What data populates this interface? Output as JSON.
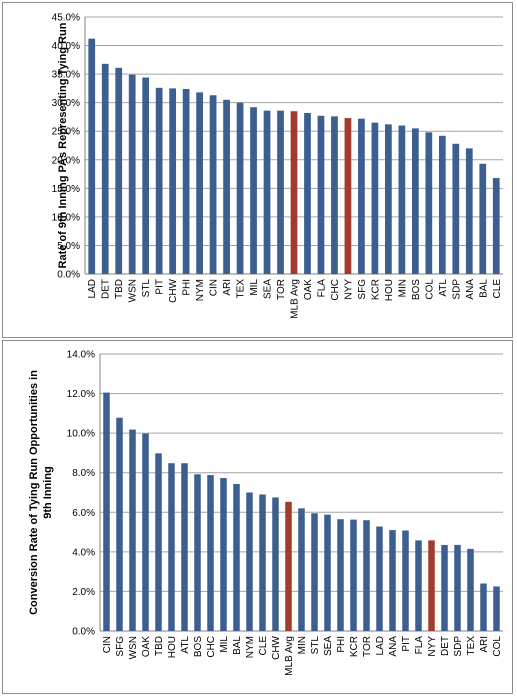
{
  "chart_data": [
    {
      "type": "bar",
      "title": "",
      "xlabel": "",
      "ylabel": "Rate of 9th Inning PAs Representing Tying Run",
      "ylim": [
        0,
        0.45
      ],
      "y_ticks": [
        "0.0%",
        "5.0%",
        "10.0%",
        "15.0%",
        "20.0%",
        "25.0%",
        "30.0%",
        "35.0%",
        "40.0%",
        "45.0%"
      ],
      "y_tick_values": [
        0,
        0.05,
        0.1,
        0.15,
        0.2,
        0.25,
        0.3,
        0.35,
        0.4,
        0.45
      ],
      "grid": "y-major",
      "bar_color": "#3c5f8f",
      "highlight_color": "#a13b2e",
      "highlight": [
        "MLB Avg",
        "NYY"
      ],
      "categories": [
        "LAD",
        "DET",
        "TBD",
        "WSN",
        "STL",
        "PIT",
        "CHW",
        "PHI",
        "NYM",
        "CIN",
        "ARI",
        "TEX",
        "MIL",
        "SEA",
        "TOR",
        "MLB Avg",
        "OAK",
        "FLA",
        "CHC",
        "NYY",
        "SFG",
        "KCR",
        "HOU",
        "MIN",
        "BOS",
        "COL",
        "ATL",
        "SDP",
        "ANA",
        "BAL",
        "CLE"
      ],
      "values": [
        0.412,
        0.368,
        0.361,
        0.349,
        0.344,
        0.326,
        0.325,
        0.324,
        0.318,
        0.313,
        0.305,
        0.3,
        0.292,
        0.286,
        0.286,
        0.285,
        0.282,
        0.277,
        0.276,
        0.273,
        0.272,
        0.265,
        0.262,
        0.26,
        0.255,
        0.248,
        0.242,
        0.228,
        0.22,
        0.193,
        0.168
      ]
    },
    {
      "type": "bar",
      "title": "",
      "xlabel": "",
      "ylabel": "Conversion Rate of Tying Run Opportunities in 9th Inning",
      "ylabel_lines": [
        "Conversion Rate of Tying Run Opportunities in",
        "9th Inning"
      ],
      "ylim": [
        0,
        0.14
      ],
      "y_ticks": [
        "0.0%",
        "2.0%",
        "4.0%",
        "6.0%",
        "8.0%",
        "10.0%",
        "12.0%",
        "14.0%"
      ],
      "y_tick_values": [
        0,
        0.02,
        0.04,
        0.06,
        0.08,
        0.1,
        0.12,
        0.14
      ],
      "grid": "y-major",
      "bar_color": "#3c5f8f",
      "highlight_color": "#a13b2e",
      "highlight": [
        "MLB Avg",
        "NYY"
      ],
      "categories": [
        "CIN",
        "SFG",
        "WSN",
        "OAK",
        "TBD",
        "HOU",
        "ATL",
        "BOS",
        "CHC",
        "MIL",
        "BAL",
        "NYM",
        "CLE",
        "CHW",
        "MLB Avg",
        "MIN",
        "STL",
        "SEA",
        "PHI",
        "KCR",
        "TOR",
        "LAD",
        "ANA",
        "PIT",
        "FLA",
        "NYY",
        "DET",
        "SDP",
        "TEX",
        "ARI",
        "COL"
      ],
      "values": [
        0.1205,
        0.1078,
        0.1018,
        0.0998,
        0.0898,
        0.0848,
        0.0848,
        0.0792,
        0.0788,
        0.0773,
        0.0743,
        0.07,
        0.069,
        0.0675,
        0.0653,
        0.062,
        0.0595,
        0.0588,
        0.0565,
        0.0563,
        0.056,
        0.0528,
        0.051,
        0.0508,
        0.0458,
        0.0458,
        0.0435,
        0.0435,
        0.0415,
        0.024,
        0.0225
      ]
    }
  ]
}
